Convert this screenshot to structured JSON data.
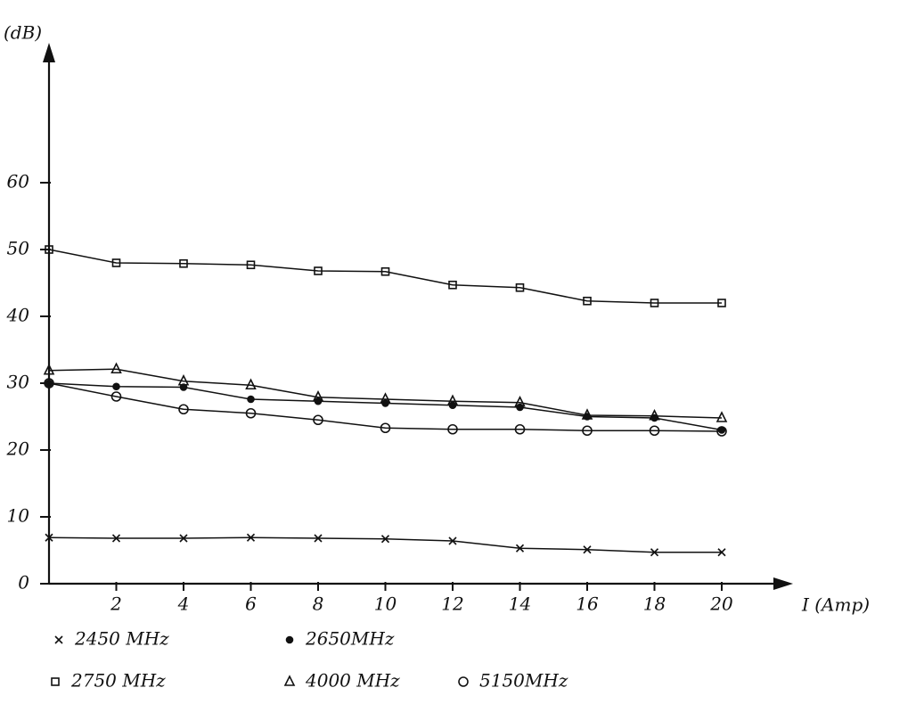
{
  "chart_data": {
    "type": "line",
    "y_label": "(dB)",
    "x_label": "I (Amp)",
    "x": [
      0,
      2,
      4,
      6,
      8,
      10,
      12,
      14,
      16,
      18,
      20
    ],
    "xlim": [
      0,
      22
    ],
    "xticks": [
      2,
      4,
      6,
      8,
      10,
      12,
      14,
      16,
      18,
      20
    ],
    "ylim": [
      0,
      80
    ],
    "yticks": [
      0,
      10,
      20,
      30,
      40,
      50,
      60
    ],
    "grid": false,
    "series": [
      {
        "name": "2450 MHz",
        "color": "#111111",
        "marker": "x",
        "values": [
          6.9,
          6.8,
          6.8,
          6.9,
          6.8,
          6.7,
          6.4,
          5.3,
          5.1,
          4.7,
          4.7
        ]
      },
      {
        "name": "2650MHz",
        "color": "#111111",
        "marker": "dot",
        "values": [
          30,
          29.5,
          29.4,
          27.6,
          27.3,
          27,
          26.7,
          26.4,
          25,
          24.8,
          23
        ]
      },
      {
        "name": "2750 MHz",
        "color": "#111111",
        "marker": "square",
        "values": [
          50,
          48,
          47.9,
          47.7,
          46.8,
          46.7,
          44.7,
          44.3,
          42.3,
          42,
          42
        ]
      },
      {
        "name": "4000 MHz",
        "color": "#111111",
        "marker": "triangle",
        "values": [
          31.9,
          32.1,
          30.3,
          29.7,
          27.9,
          27.6,
          27.3,
          27.1,
          25.2,
          25.1,
          24.8
        ]
      },
      {
        "name": "5150MHz",
        "color": "#111111",
        "marker": "circle",
        "values": [
          30,
          28,
          26.1,
          25.5,
          24.5,
          23.3,
          23.1,
          23.1,
          22.9,
          22.9,
          22.8
        ]
      }
    ]
  }
}
